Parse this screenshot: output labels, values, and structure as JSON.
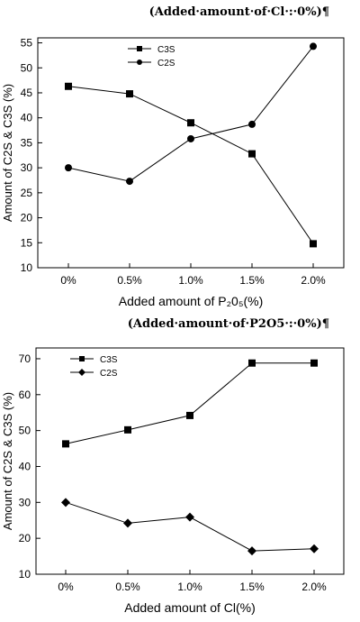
{
  "captions": {
    "top": "(Added·amount·of·Cl·:·0%)¶",
    "bottom": "(Added·amount·of·P2O5·:·0%)¶"
  },
  "chart_data": [
    {
      "type": "line",
      "categories": [
        "0%",
        "0.5%",
        "1.0%",
        "1.5%",
        "2.0%"
      ],
      "series": [
        {
          "name": "C3S",
          "marker": "square",
          "values": [
            46.3,
            44.8,
            39.0,
            32.8,
            14.8
          ]
        },
        {
          "name": "C2S",
          "marker": "circle",
          "values": [
            30.0,
            27.3,
            35.8,
            38.7,
            54.3
          ]
        }
      ],
      "xlabel": "Added amount of P₂0₅(%)",
      "ylabel": "Amount of C2S & C3S (%)",
      "ylim": [
        10,
        56
      ],
      "yticks": [
        10,
        15,
        20,
        25,
        30,
        35,
        40,
        45,
        50,
        55
      ],
      "legend": "top-left",
      "grid": false
    },
    {
      "type": "line",
      "categories": [
        "0%",
        "0.5%",
        "1.0%",
        "1.5%",
        "2.0%"
      ],
      "series": [
        {
          "name": "C3S",
          "marker": "square",
          "values": [
            46.3,
            50.2,
            54.2,
            68.8,
            68.8
          ]
        },
        {
          "name": "C2S",
          "marker": "diamond",
          "values": [
            30.0,
            24.2,
            25.9,
            16.5,
            17.1
          ]
        }
      ],
      "xlabel": "Added amount of Cl(%)",
      "ylabel": "Amount of C2S & C3S (%)",
      "ylim": [
        10,
        73
      ],
      "yticks": [
        10,
        20,
        30,
        40,
        50,
        60,
        70
      ],
      "legend": "top-left",
      "grid": false
    }
  ]
}
